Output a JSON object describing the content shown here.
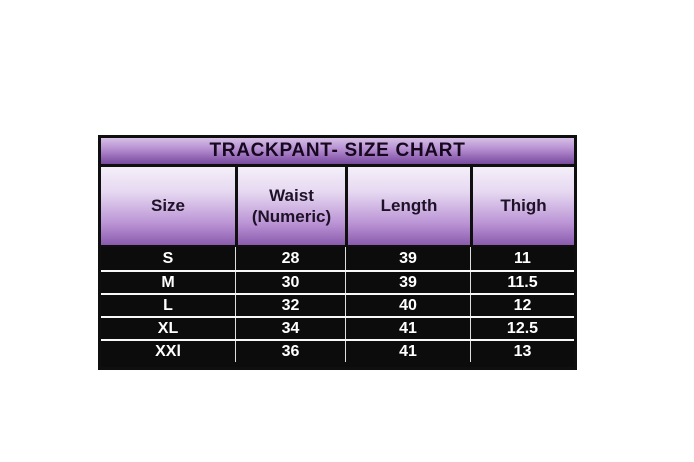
{
  "chart_data": {
    "type": "table",
    "title": "TRACKPANT- SIZE CHART",
    "columns": [
      "Size",
      "Waist (Numeric)",
      "Length",
      "Thigh"
    ],
    "rows": [
      [
        "S",
        "28",
        "39",
        "11"
      ],
      [
        "M",
        "30",
        "39",
        "11.5"
      ],
      [
        "L",
        "32",
        "40",
        "12"
      ],
      [
        "XL",
        "34",
        "41",
        "12.5"
      ],
      [
        "XXl",
        "36",
        "41",
        "13"
      ]
    ]
  },
  "display": {
    "headers": [
      {
        "label": "Size",
        "sublabel": ""
      },
      {
        "label": "Waist",
        "sublabel": "(Numeric)"
      },
      {
        "label": "Length",
        "sublabel": ""
      },
      {
        "label": "Thigh",
        "sublabel": ""
      }
    ]
  },
  "colors": {
    "title_gradient_top": "#d6bfe7",
    "title_gradient_bottom": "#774b9c",
    "header_gradient_top": "#f4eff9",
    "header_gradient_bottom": "#8a5bad",
    "table_border": "#0f0f0f",
    "data_row_background": "#0c0c0c",
    "data_text": "#ffffff",
    "title_text": "#16091f",
    "page_background": "#ffffff"
  }
}
